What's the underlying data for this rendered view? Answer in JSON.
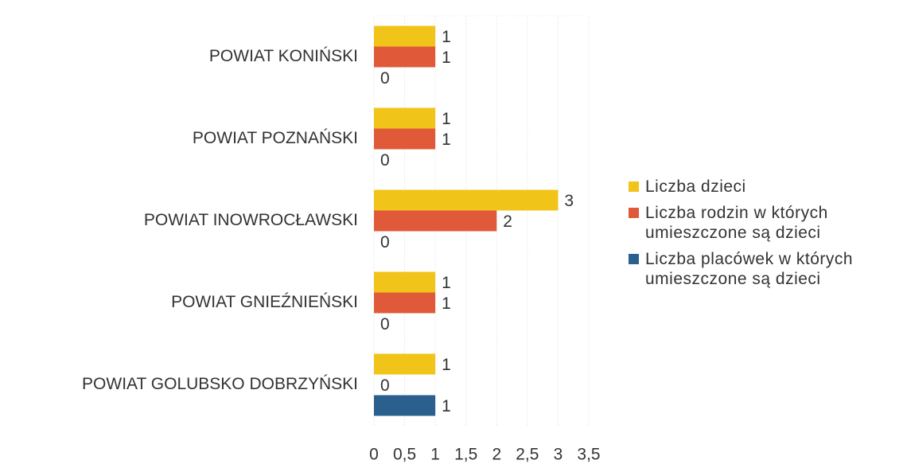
{
  "chart_data": {
    "type": "hbar",
    "categories": [
      "POWIAT KONIŃSKI",
      "POWIAT POZNAŃSKI",
      "POWIAT INOWROCŁAWSKI",
      "POWIAT GNIEŹNIEŃSKI",
      "POWIAT GOLUBSKO DOBRZYŃSKI"
    ],
    "series": [
      {
        "name": "Liczba dzieci",
        "color": "#f0c419",
        "values": [
          1,
          1,
          3,
          1,
          1
        ]
      },
      {
        "name": "Liczba rodzin w których umieszczone są dzieci",
        "color": "#e05a3a",
        "values": [
          1,
          1,
          2,
          1,
          0
        ]
      },
      {
        "name": "Liczba placówek w których umieszczone są dzieci",
        "color": "#2b5f8e",
        "values": [
          0,
          0,
          0,
          0,
          1
        ]
      }
    ],
    "xlim": [
      0,
      3.5
    ],
    "xticks": [
      0,
      {
        "value": 0.5,
        "label": "0,5"
      },
      1,
      {
        "value": 1.5,
        "label": "1,5"
      },
      2,
      {
        "value": 2.5,
        "label": "2,5"
      },
      3,
      {
        "value": 3.5,
        "label": "3,5"
      }
    ],
    "grid": true,
    "legend": "right"
  }
}
